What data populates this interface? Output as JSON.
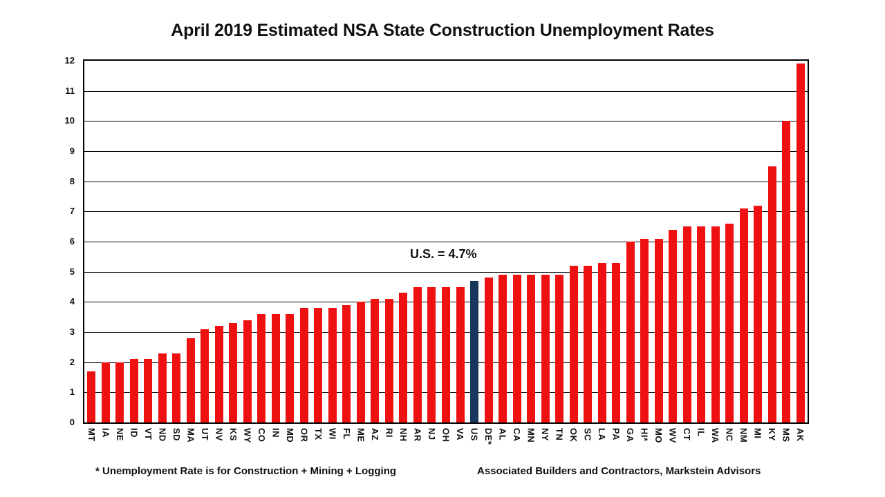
{
  "title": "April 2019 Estimated NSA State Construction Unemployment Rates",
  "annotation": "U.S. = 4.7%",
  "footer": {
    "note": "* Unemployment Rate is for Construction + Mining + Logging",
    "source": "Associated Builders and Contractors, Markstein Advisors"
  },
  "colors": {
    "bar": "#ee1111",
    "highlight_bar": "#17375e",
    "grid": "#000000"
  },
  "chart_data": {
    "type": "bar",
    "title": "April 2019 Estimated NSA State Construction Unemployment Rates",
    "categories": [
      "MT",
      "IA",
      "NE",
      "ID",
      "VT",
      "ND",
      "SD",
      "MA",
      "UT",
      "NV",
      "KS",
      "WY",
      "CO",
      "IN",
      "MD",
      "OR",
      "TX",
      "WI",
      "FL",
      "ME",
      "AZ",
      "RI",
      "NH",
      "AR",
      "NJ",
      "OH",
      "VA",
      "US",
      "DE*",
      "AL",
      "CA",
      "MN",
      "NY",
      "TN",
      "OK",
      "SC",
      "LA",
      "PA",
      "GA",
      "HI*",
      "MO",
      "WV",
      "CT",
      "IL",
      "WA",
      "NC",
      "NM",
      "MI",
      "KY",
      "MS",
      "AK"
    ],
    "values": [
      1.7,
      2.0,
      2.0,
      2.1,
      2.1,
      2.3,
      2.3,
      2.8,
      3.1,
      3.2,
      3.3,
      3.4,
      3.6,
      3.6,
      3.6,
      3.8,
      3.8,
      3.8,
      3.9,
      4.0,
      4.1,
      4.1,
      4.3,
      4.5,
      4.5,
      4.5,
      4.5,
      4.7,
      4.8,
      4.9,
      4.9,
      4.9,
      4.9,
      4.9,
      5.2,
      5.2,
      5.3,
      5.3,
      6.0,
      6.1,
      6.1,
      6.4,
      6.5,
      6.5,
      6.5,
      6.6,
      7.1,
      7.2,
      8.5,
      10.0,
      11.9
    ],
    "highlight_category": "US",
    "highlight_index": 27,
    "highlight_value": 4.7,
    "xlabel": "",
    "ylabel": "",
    "ylim": [
      0,
      12
    ],
    "ytick_step": 1,
    "grid": true,
    "legend": "none",
    "annotation": "U.S. = 4.7%"
  }
}
